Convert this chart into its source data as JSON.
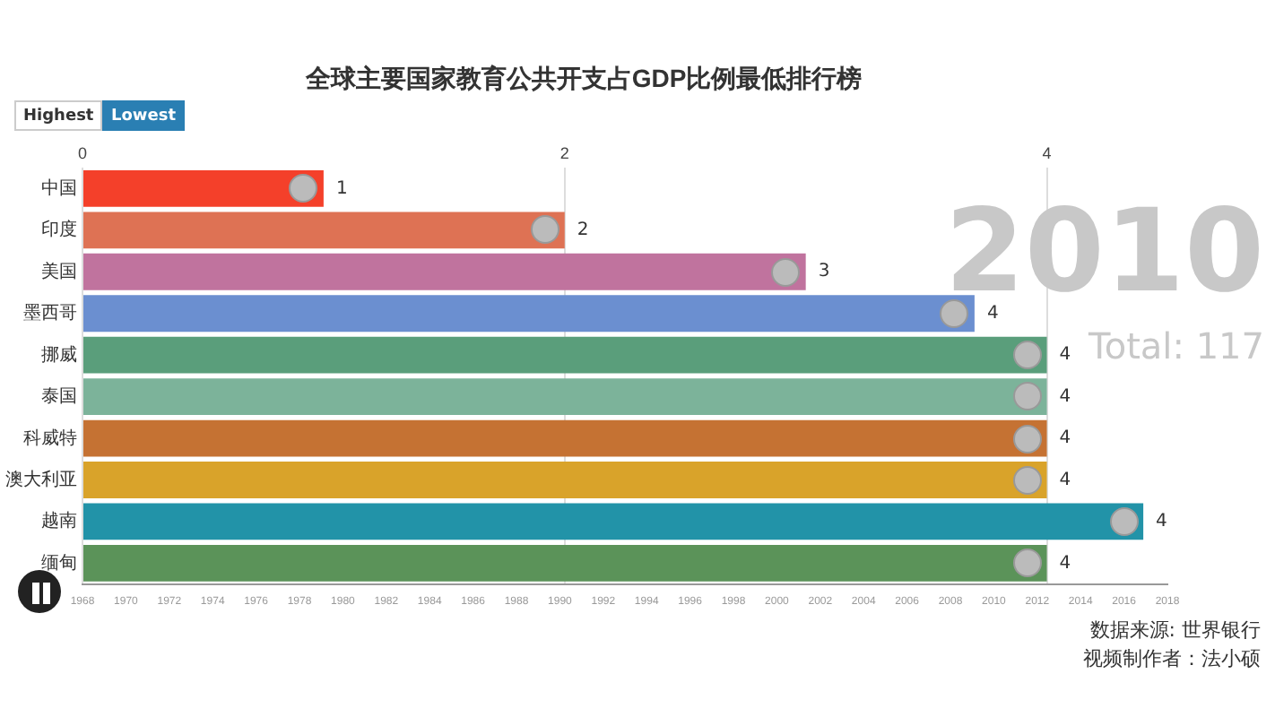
{
  "chart_data": {
    "type": "bar",
    "orientation": "horizontal",
    "title": "全球主要国家教育公共开支占GDP比例最低排行榜",
    "categories": [
      "中国",
      "印度",
      "美国",
      "墨西哥",
      "挪威",
      "泰国",
      "科威特",
      "澳大利亚",
      "越南",
      "缅甸"
    ],
    "values": [
      1,
      2,
      3,
      3.7,
      4,
      4,
      4,
      4,
      4.4,
      4
    ],
    "value_labels": [
      "1",
      "2",
      "3",
      "4",
      "4",
      "4",
      "4",
      "4",
      "4",
      "4"
    ],
    "colors": [
      "#f4402a",
      "#de7254",
      "#c0739e",
      "#6b8fd0",
      "#5a9e7b",
      "#7cb39a",
      "#c57233",
      "#d9a32a",
      "#2293a8",
      "#5b9359"
    ],
    "xlim": [
      0,
      4.5
    ],
    "xticks": [
      0,
      2,
      4
    ],
    "x2lim": [
      1968,
      2018
    ],
    "x2ticks": [
      1968,
      1970,
      1972,
      1974,
      1976,
      1978,
      1980,
      1982,
      1984,
      1986,
      1988,
      1990,
      1992,
      1994,
      1996,
      1998,
      2000,
      2002,
      2004,
      2006,
      2008,
      2010,
      2012,
      2014,
      2016,
      2018
    ],
    "grid": "x",
    "legend": false,
    "annotations": [
      "Highest",
      "Lowest",
      "2010",
      "Total: 117",
      "数据来源: 世界银行",
      "视频制作者：法小硕"
    ]
  }
}
